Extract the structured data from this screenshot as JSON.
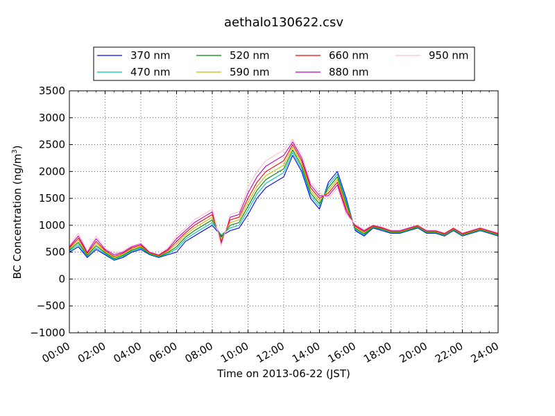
{
  "chart_data": {
    "type": "line",
    "title": "aethalo130622.csv",
    "xlabel": "Time on 2013-06-22 (JST)",
    "ylabel": "BC Concentration (ng/m",
    "ylabel_sup": "3",
    "ylabel_close": ")",
    "xlim_hours": [
      0,
      24
    ],
    "ylim": [
      -1000,
      3500
    ],
    "y_ticks": [
      -1000,
      -500,
      0,
      500,
      1000,
      1500,
      2000,
      2500,
      3000,
      3500
    ],
    "x_ticks": [
      {
        "hour": 0,
        "label": "00:00"
      },
      {
        "hour": 2,
        "label": "02:00"
      },
      {
        "hour": 4,
        "label": "04:00"
      },
      {
        "hour": 6,
        "label": "06:00"
      },
      {
        "hour": 8,
        "label": "08:00"
      },
      {
        "hour": 10,
        "label": "10:00"
      },
      {
        "hour": 12,
        "label": "12:00"
      },
      {
        "hour": 14,
        "label": "14:00"
      },
      {
        "hour": 16,
        "label": "16:00"
      },
      {
        "hour": 18,
        "label": "18:00"
      },
      {
        "hour": 20,
        "label": "20:00"
      },
      {
        "hour": 22,
        "label": "22:00"
      },
      {
        "hour": 24,
        "label": "24:00"
      }
    ],
    "grid": true,
    "legend_position": "top",
    "x_hours": [
      0.0,
      0.5,
      1.0,
      1.5,
      2.0,
      2.5,
      3.0,
      3.5,
      4.0,
      4.5,
      5.0,
      5.5,
      6.0,
      6.5,
      7.0,
      7.5,
      8.0,
      8.5,
      9.0,
      9.5,
      10.0,
      10.5,
      11.0,
      11.5,
      12.0,
      12.5,
      13.0,
      13.5,
      14.0,
      14.5,
      15.0,
      15.5,
      16.0,
      16.5,
      17.0,
      17.5,
      18.0,
      18.5,
      19.0,
      19.5,
      20.0,
      20.5,
      21.0,
      21.5,
      22.0,
      22.5,
      23.0,
      23.5,
      24.0
    ],
    "series": [
      {
        "name": "370 nm",
        "color": "#0000ff",
        "values": [
          500,
          600,
          400,
          550,
          450,
          350,
          400,
          500,
          550,
          450,
          400,
          450,
          500,
          700,
          800,
          900,
          1000,
          800,
          900,
          950,
          1200,
          1500,
          1700,
          1800,
          1900,
          2300,
          2000,
          1500,
          1300,
          1800,
          2000,
          1500,
          900,
          800,
          950,
          900,
          850,
          850,
          900,
          950,
          850,
          850,
          800,
          900,
          800,
          850,
          900,
          850,
          800
        ]
      },
      {
        "name": "470 nm",
        "color": "#00bfbf",
        "values": [
          520,
          640,
          420,
          580,
          470,
          360,
          420,
          520,
          570,
          460,
          410,
          470,
          560,
          740,
          850,
          950,
          1050,
          820,
          950,
          1000,
          1280,
          1580,
          1780,
          1880,
          1980,
          2350,
          2050,
          1550,
          1350,
          1750,
          1950,
          1450,
          920,
          820,
          960,
          920,
          860,
          860,
          910,
          960,
          860,
          860,
          810,
          910,
          810,
          860,
          910,
          860,
          810
        ]
      },
      {
        "name": "520 nm",
        "color": "#008000",
        "values": [
          540,
          680,
          440,
          620,
          490,
          380,
          440,
          540,
          590,
          470,
          420,
          490,
          600,
          780,
          900,
          1000,
          1100,
          780,
          1000,
          1050,
          1350,
          1650,
          1850,
          1950,
          2050,
          2400,
          2100,
          1600,
          1400,
          1700,
          1900,
          1400,
          940,
          840,
          970,
          930,
          870,
          870,
          920,
          970,
          870,
          870,
          820,
          920,
          820,
          870,
          920,
          870,
          820
        ]
      },
      {
        "name": "590 nm",
        "color": "#bfbf00",
        "values": [
          560,
          720,
          460,
          660,
          510,
          400,
          460,
          560,
          610,
          480,
          430,
          510,
          650,
          820,
          950,
          1050,
          1150,
          740,
          1050,
          1100,
          1420,
          1720,
          1920,
          2020,
          2120,
          2450,
          2150,
          1650,
          1450,
          1650,
          1850,
          1350,
          960,
          860,
          980,
          940,
          880,
          880,
          930,
          980,
          880,
          880,
          830,
          930,
          830,
          880,
          930,
          880,
          830
        ]
      },
      {
        "name": "660 nm",
        "color": "#ff0000",
        "values": [
          580,
          760,
          480,
          700,
          530,
          420,
          480,
          580,
          630,
          490,
          440,
          530,
          700,
          860,
          1000,
          1100,
          1200,
          700,
          1100,
          1150,
          1500,
          1800,
          2000,
          2100,
          2200,
          2500,
          2200,
          1700,
          1500,
          1600,
          1800,
          1300,
          980,
          880,
          990,
          950,
          890,
          890,
          940,
          990,
          890,
          890,
          840,
          940,
          840,
          890,
          940,
          890,
          840
        ]
      },
      {
        "name": "880 nm",
        "color": "#bf00bf",
        "values": [
          600,
          800,
          500,
          750,
          550,
          450,
          500,
          600,
          650,
          500,
          450,
          550,
          750,
          900,
          1050,
          1150,
          1250,
          660,
          1150,
          1200,
          1600,
          1900,
          2100,
          2200,
          2300,
          2550,
          2250,
          1750,
          1550,
          1550,
          1750,
          1250,
          1000,
          900,
          1000,
          960,
          900,
          900,
          950,
          1000,
          900,
          900,
          850,
          950,
          850,
          900,
          950,
          900,
          850
        ]
      },
      {
        "name": "950 nm",
        "color": "#ffc0cb",
        "values": [
          620,
          850,
          520,
          800,
          570,
          480,
          520,
          620,
          670,
          510,
          460,
          570,
          800,
          950,
          1100,
          1200,
          1300,
          620,
          1200,
          1250,
          1700,
          2000,
          2200,
          2300,
          2400,
          2600,
          2300,
          1800,
          1600,
          1500,
          1700,
          1200,
          1020,
          920,
          1010,
          970,
          910,
          910,
          960,
          1010,
          910,
          910,
          860,
          960,
          860,
          910,
          960,
          910,
          860
        ]
      }
    ]
  }
}
